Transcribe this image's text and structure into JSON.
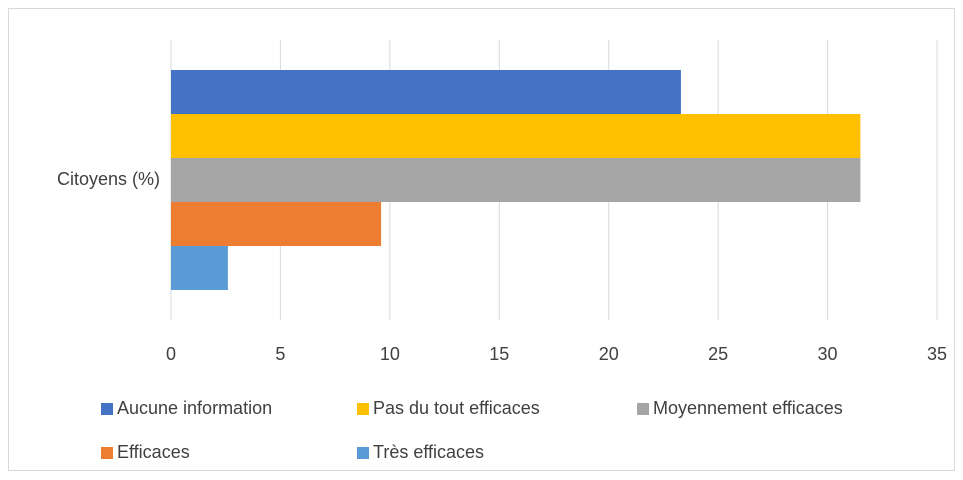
{
  "chart_data": {
    "type": "bar",
    "orientation": "horizontal",
    "categories": [
      "Citoyens (%)"
    ],
    "series": [
      {
        "name": "Aucune information",
        "color": "#4472c4",
        "values": [
          23.3
        ]
      },
      {
        "name": "Pas du tout efficaces",
        "color": "#ffc000",
        "values": [
          31.5
        ]
      },
      {
        "name": "Moyennement efficaces",
        "color": "#a5a5a5",
        "values": [
          31.5
        ]
      },
      {
        "name": "Efficaces",
        "color": "#ed7d31",
        "values": [
          9.6
        ]
      },
      {
        "name": "Très efficaces",
        "color": "#5b9bd5",
        "values": [
          2.6
        ]
      }
    ],
    "xlim": [
      0,
      35
    ],
    "xticks": [
      0,
      5,
      10,
      15,
      20,
      25,
      30,
      35
    ],
    "grid": true,
    "legend": "bottom"
  }
}
